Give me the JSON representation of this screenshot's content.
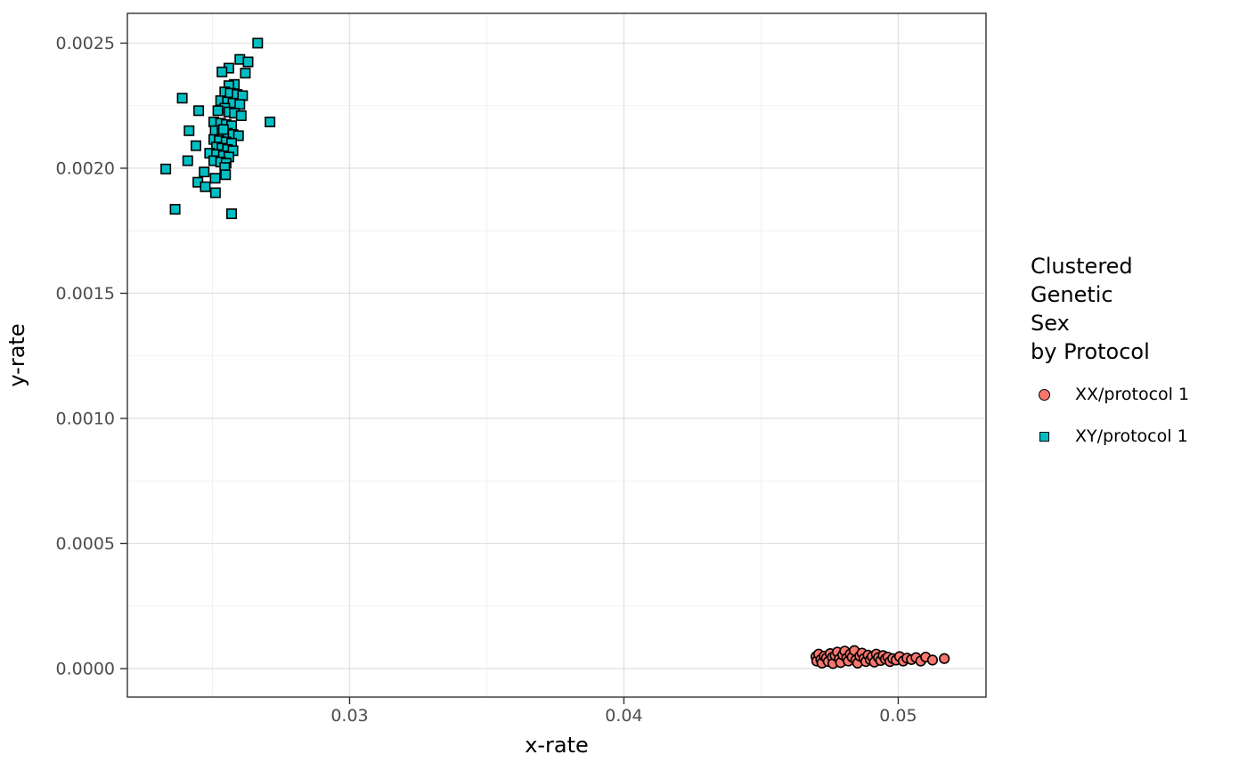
{
  "colors": {
    "salmon": "#F8766D",
    "teal": "#00BFC4",
    "marker_stroke": "#000000",
    "grid_major": "#E2E2E2",
    "grid_minor": "#F0F0F0",
    "panel_border": "#333333",
    "tick": "#333333",
    "tick_label": "#4D4D4D",
    "axis_title": "#000000"
  },
  "chart_data": {
    "type": "scatter",
    "title": "",
    "xlabel": "x-rate",
    "ylabel": "y-rate",
    "grid": true,
    "legend_position": "right",
    "xlim": [
      0.0219,
      0.0532
    ],
    "ylim": [
      -0.000114,
      0.002619
    ],
    "x_ticks": {
      "values": [
        0.03,
        0.04,
        0.05
      ],
      "labels": [
        "0.03",
        "0.04",
        "0.05"
      ]
    },
    "y_ticks": {
      "values": [
        0.0,
        0.0005,
        0.001,
        0.0015,
        0.002,
        0.0025
      ],
      "labels": [
        "0.0000",
        "0.0005",
        "0.0010",
        "0.0015",
        "0.0020",
        "0.0025"
      ]
    },
    "x_minor": [
      0.025,
      0.035,
      0.045
    ],
    "y_minor": [
      0.00025,
      0.00075,
      0.00125,
      0.00175,
      0.00225
    ],
    "legend": {
      "title": "Clustered\nGenetic\nSex\nby Protocol",
      "items": [
        {
          "label": "XX/protocol 1",
          "marker": "circle",
          "color": "#F8766D"
        },
        {
          "label": "XY/protocol 1",
          "marker": "square",
          "color": "#00BFC4"
        }
      ]
    },
    "series": [
      {
        "name": "XX/protocol 1",
        "marker": "circle",
        "fill": "#F8766D",
        "stroke": "#000000",
        "points": [
          [
            0.047,
            4.8e-05
          ],
          [
            0.04703,
            3e-05
          ],
          [
            0.0471,
            5.8e-05
          ],
          [
            0.04718,
            3.6e-05
          ],
          [
            0.04722,
            2.2e-05
          ],
          [
            0.0473,
            5e-05
          ],
          [
            0.04738,
            4.2e-05
          ],
          [
            0.04745,
            2.8e-05
          ],
          [
            0.04752,
            6e-05
          ],
          [
            0.0476,
            4.5e-05
          ],
          [
            0.04762,
            2e-05
          ],
          [
            0.0477,
            5.2e-05
          ],
          [
            0.04778,
            6.6e-05
          ],
          [
            0.04785,
            3.8e-05
          ],
          [
            0.0479,
            2.4e-05
          ],
          [
            0.04798,
            5.5e-05
          ],
          [
            0.04805,
            7e-05
          ],
          [
            0.04812,
            4.2e-05
          ],
          [
            0.04818,
            3e-05
          ],
          [
            0.04825,
            5.8e-05
          ],
          [
            0.04832,
            4.6e-05
          ],
          [
            0.0484,
            7.2e-05
          ],
          [
            0.04845,
            3.4e-05
          ],
          [
            0.04852,
            2.2e-05
          ],
          [
            0.0486,
            5e-05
          ],
          [
            0.04868,
            6.2e-05
          ],
          [
            0.04875,
            4e-05
          ],
          [
            0.04882,
            2.8e-05
          ],
          [
            0.0489,
            5.4e-05
          ],
          [
            0.04898,
            3.6e-05
          ],
          [
            0.04905,
            4.8e-05
          ],
          [
            0.04913,
            2.6e-05
          ],
          [
            0.0492,
            5.8e-05
          ],
          [
            0.04928,
            4.4e-05
          ],
          [
            0.04936,
            3.2e-05
          ],
          [
            0.04945,
            5.2e-05
          ],
          [
            0.04953,
            3.8e-05
          ],
          [
            0.04962,
            4.6e-05
          ],
          [
            0.0497,
            2.8e-05
          ],
          [
            0.0498,
            4e-05
          ],
          [
            0.04992,
            3.4e-05
          ],
          [
            0.05005,
            4.8e-05
          ],
          [
            0.05018,
            3e-05
          ],
          [
            0.05032,
            4.2e-05
          ],
          [
            0.05048,
            3.6e-05
          ],
          [
            0.05065,
            4.4e-05
          ],
          [
            0.05082,
            3e-05
          ],
          [
            0.051,
            4.6e-05
          ],
          [
            0.05125,
            3.4e-05
          ],
          [
            0.05168,
            4e-05
          ]
        ]
      },
      {
        "name": "XY/protocol 1",
        "marker": "square",
        "fill": "#00BFC4",
        "stroke": "#000000",
        "points": [
          [
            0.02665,
            0.0025
          ],
          [
            0.026,
            0.002435
          ],
          [
            0.0263,
            0.002425
          ],
          [
            0.0256,
            0.0024
          ],
          [
            0.0262,
            0.00238
          ],
          [
            0.02535,
            0.002385
          ],
          [
            0.0258,
            0.002335
          ],
          [
            0.0256,
            0.00233
          ],
          [
            0.02545,
            0.002305
          ],
          [
            0.02565,
            0.0023
          ],
          [
            0.0259,
            0.002295
          ],
          [
            0.0261,
            0.00229
          ],
          [
            0.0239,
            0.00228
          ],
          [
            0.0253,
            0.00227
          ],
          [
            0.02555,
            0.002265
          ],
          [
            0.02575,
            0.00226
          ],
          [
            0.026,
            0.002255
          ],
          [
            0.02545,
            0.00224
          ],
          [
            0.0252,
            0.00223
          ],
          [
            0.0245,
            0.00223
          ],
          [
            0.0256,
            0.002225
          ],
          [
            0.0258,
            0.00222
          ],
          [
            0.02605,
            0.00221
          ],
          [
            0.0271,
            0.002185
          ],
          [
            0.02505,
            0.002185
          ],
          [
            0.0253,
            0.00218
          ],
          [
            0.0255,
            0.002175
          ],
          [
            0.0257,
            0.00217
          ],
          [
            0.02415,
            0.00215
          ],
          [
            0.0251,
            0.00215
          ],
          [
            0.02535,
            0.002145
          ],
          [
            0.02555,
            0.00214
          ],
          [
            0.02575,
            0.002135
          ],
          [
            0.02595,
            0.00213
          ],
          [
            0.02505,
            0.002115
          ],
          [
            0.02525,
            0.00211
          ],
          [
            0.0255,
            0.002105
          ],
          [
            0.0257,
            0.0021
          ],
          [
            0.0244,
            0.00209
          ],
          [
            0.02515,
            0.002085
          ],
          [
            0.02535,
            0.00208
          ],
          [
            0.02555,
            0.002075
          ],
          [
            0.02575,
            0.00207
          ],
          [
            0.0249,
            0.00206
          ],
          [
            0.02515,
            0.002055
          ],
          [
            0.0254,
            0.00205
          ],
          [
            0.0256,
            0.002045
          ],
          [
            0.0241,
            0.00203
          ],
          [
            0.02505,
            0.00203
          ],
          [
            0.0253,
            0.002025
          ],
          [
            0.0255,
            0.00202
          ],
          [
            0.02545,
            0.002003
          ],
          [
            0.0233,
            0.001997
          ],
          [
            0.0247,
            0.001985
          ],
          [
            0.02548,
            0.001974
          ],
          [
            0.0251,
            0.00196
          ],
          [
            0.02447,
            0.001944
          ],
          [
            0.02474,
            0.001926
          ],
          [
            0.02511,
            0.001902
          ],
          [
            0.02364,
            0.001836
          ],
          [
            0.0257,
            0.001818
          ],
          [
            0.0254,
            0.002155
          ]
        ]
      }
    ]
  }
}
